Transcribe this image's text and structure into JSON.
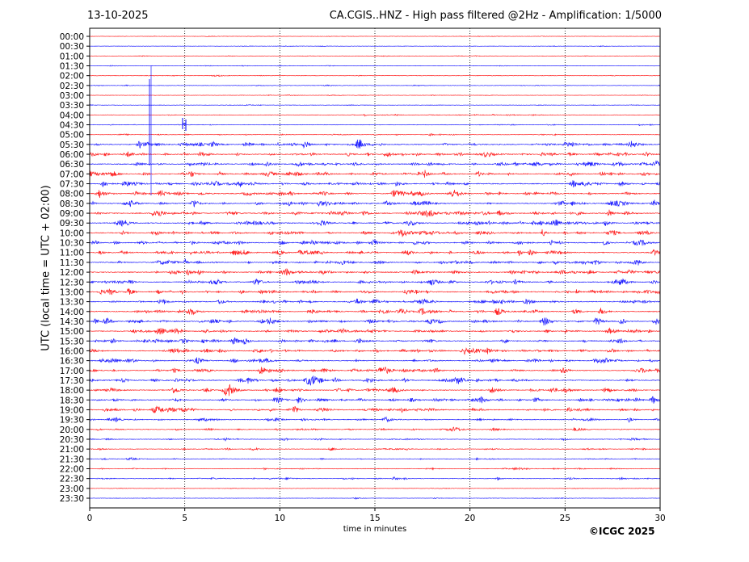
{
  "header": {
    "date": "13-10-2025",
    "title": "CA.CGIS..HNZ - High pass filtered @2Hz - Amplification: 1/5000"
  },
  "footer": {
    "copyright": "©ICGC 2025"
  },
  "chart_data": {
    "type": "line",
    "title": "CA.CGIS..HNZ - High pass filtered @2Hz - Amplification: 1/5000",
    "xlabel": "time in minutes",
    "ylabel": "UTC (local time = UTC + 02:00)",
    "xlim": [
      0,
      30
    ],
    "x_ticks": [
      "0",
      "5",
      "10",
      "15",
      "20",
      "25",
      "30"
    ],
    "x_tick_values": [
      0,
      5,
      10,
      15,
      20,
      25,
      30
    ],
    "vertical_gridlines": [
      5,
      10,
      15,
      20,
      25
    ],
    "colors": {
      "even": "#ff0000",
      "odd": "#0000ff"
    },
    "traces": [
      {
        "label": "00:00",
        "activity": 0.2
      },
      {
        "label": "00:30",
        "activity": 0.2
      },
      {
        "label": "01:00",
        "activity": 0.2
      },
      {
        "label": "01:30",
        "activity": 0.2
      },
      {
        "label": "02:00",
        "activity": 0.25
      },
      {
        "label": "02:30",
        "activity": 0.25
      },
      {
        "label": "03:00",
        "activity": 0.25
      },
      {
        "label": "03:30",
        "activity": 0.25
      },
      {
        "label": "04:00",
        "activity": 0.3
      },
      {
        "label": "04:30",
        "activity": 0.3
      },
      {
        "label": "05:00",
        "activity": 0.4
      },
      {
        "label": "05:30",
        "activity": 1
      },
      {
        "label": "06:00",
        "activity": 1
      },
      {
        "label": "06:30",
        "activity": 1
      },
      {
        "label": "07:00",
        "activity": 1
      },
      {
        "label": "07:30",
        "activity": 1
      },
      {
        "label": "08:00",
        "activity": 1
      },
      {
        "label": "08:30",
        "activity": 1
      },
      {
        "label": "09:00",
        "activity": 1
      },
      {
        "label": "09:30",
        "activity": 1
      },
      {
        "label": "10:00",
        "activity": 1
      },
      {
        "label": "10:30",
        "activity": 1
      },
      {
        "label": "11:00",
        "activity": 1
      },
      {
        "label": "11:30",
        "activity": 1
      },
      {
        "label": "12:00",
        "activity": 1
      },
      {
        "label": "12:30",
        "activity": 1
      },
      {
        "label": "13:00",
        "activity": 1
      },
      {
        "label": "13:30",
        "activity": 1
      },
      {
        "label": "14:00",
        "activity": 1
      },
      {
        "label": "14:30",
        "activity": 1
      },
      {
        "label": "15:00",
        "activity": 1
      },
      {
        "label": "15:30",
        "activity": 1
      },
      {
        "label": "16:00",
        "activity": 1
      },
      {
        "label": "16:30",
        "activity": 1
      },
      {
        "label": "17:00",
        "activity": 1
      },
      {
        "label": "17:30",
        "activity": 1
      },
      {
        "label": "18:00",
        "activity": 1
      },
      {
        "label": "18:30",
        "activity": 1
      },
      {
        "label": "19:00",
        "activity": 1
      },
      {
        "label": "19:30",
        "activity": 0.7
      },
      {
        "label": "20:00",
        "activity": 0.6
      },
      {
        "label": "20:30",
        "activity": 0.5
      },
      {
        "label": "21:00",
        "activity": 0.5
      },
      {
        "label": "21:30",
        "activity": 0.4
      },
      {
        "label": "22:00",
        "activity": 0.4
      },
      {
        "label": "22:30",
        "activity": 0.5
      },
      {
        "label": "23:00",
        "activity": 0.2
      },
      {
        "label": "23:30",
        "activity": 0.2
      }
    ]
  }
}
